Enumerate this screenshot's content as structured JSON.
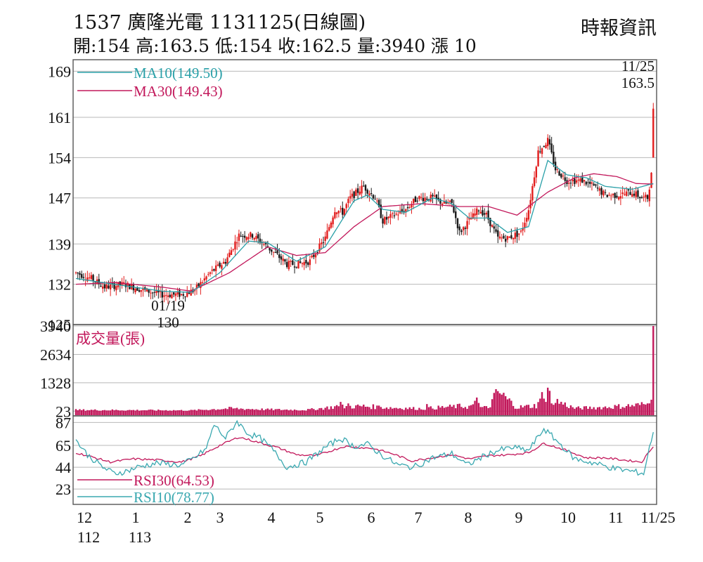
{
  "header": {
    "title": "1537  廣隆光電 1131125(日線圖)",
    "subtitle": "開:154 高:163.5 低:154 收:162.5 量:3940 漲 10",
    "source": "時報資訊"
  },
  "colors": {
    "up": "#e21d1d",
    "down": "#1a1a1a",
    "ma10": "#2aa0a8",
    "ma30": "#c2185b",
    "volume": "#c2185b",
    "rsi30": "#c2185b",
    "rsi10": "#3aa8b0",
    "grid": "#b8b8b8",
    "frame": "#555555"
  },
  "chart_data": {
    "type": "candlestick",
    "price_panel": {
      "y_ticks": [
        "169",
        "161",
        "154",
        "147",
        "139",
        "132",
        "125"
      ],
      "y_tick_values": [
        169,
        161,
        154,
        147,
        139,
        132,
        125
      ],
      "ylim": [
        125,
        171
      ],
      "legend": [
        {
          "label": "MA10(149.50)",
          "color": "#2aa0a8"
        },
        {
          "label": "MA30(149.43)",
          "color": "#c2185b"
        }
      ],
      "annotations": {
        "high_date": "11/25",
        "high_value": "163.5",
        "low_date": "01/19",
        "low_value": "130"
      },
      "last_candle": {
        "date": "11/25",
        "open": 154,
        "high": 163.5,
        "low": 154,
        "close": 162.5
      }
    },
    "volume_panel": {
      "title": "成交量(張)",
      "y_ticks": [
        "3940",
        "2634",
        "1328",
        "23"
      ],
      "y_tick_values": [
        3940,
        2634,
        1328,
        23
      ],
      "last_volume": 3940
    },
    "rsi_panel": {
      "y_ticks": [
        "87",
        "65",
        "44",
        "23"
      ],
      "y_tick_values": [
        87,
        65,
        44,
        23
      ],
      "legend": [
        {
          "label": "RSI30(64.53)",
          "color": "#c2185b"
        },
        {
          "label": "RSI10(78.77)",
          "color": "#3aa8b0"
        }
      ]
    },
    "x_axis": {
      "months": [
        "12",
        "1",
        "2",
        "3",
        "4",
        "5",
        "6",
        "7",
        "8",
        "9",
        "10",
        "11",
        "11/25"
      ],
      "year_labels": [
        {
          "under": "12",
          "text": "112"
        },
        {
          "under": "1",
          "text": "113"
        }
      ]
    },
    "price_keypoints": [
      [
        0,
        134
      ],
      [
        8,
        133
      ],
      [
        15,
        131.5
      ],
      [
        25,
        132
      ],
      [
        35,
        131
      ],
      [
        45,
        130.2
      ],
      [
        55,
        130.2
      ],
      [
        62,
        131
      ],
      [
        70,
        134
      ],
      [
        78,
        136
      ],
      [
        85,
        140.5
      ],
      [
        92,
        140.5
      ],
      [
        98,
        139
      ],
      [
        105,
        137
      ],
      [
        110,
        135.5
      ],
      [
        115,
        135.5
      ],
      [
        122,
        136
      ],
      [
        130,
        140
      ],
      [
        135,
        145
      ],
      [
        139,
        144.5
      ],
      [
        143,
        147
      ],
      [
        150,
        149
      ],
      [
        156,
        147
      ],
      [
        160,
        143
      ],
      [
        166,
        144
      ],
      [
        172,
        145
      ],
      [
        178,
        147
      ],
      [
        186,
        147
      ],
      [
        192,
        146
      ],
      [
        196,
        146
      ],
      [
        200,
        141
      ],
      [
        205,
        143
      ],
      [
        210,
        145
      ],
      [
        214,
        144
      ],
      [
        220,
        140
      ],
      [
        225,
        140
      ],
      [
        232,
        141
      ],
      [
        236,
        145
      ],
      [
        241,
        155
      ],
      [
        246,
        157
      ],
      [
        250,
        152
      ],
      [
        256,
        150
      ],
      [
        264,
        150
      ],
      [
        270,
        149
      ],
      [
        276,
        147.5
      ],
      [
        283,
        147.5
      ],
      [
        290,
        148
      ],
      [
        295,
        147
      ],
      [
        298,
        147
      ],
      [
        300,
        151
      ],
      [
        301,
        160
      ]
    ],
    "ma10_keypoints": [
      [
        0,
        133
      ],
      [
        20,
        132
      ],
      [
        45,
        130.8
      ],
      [
        60,
        130.6
      ],
      [
        75,
        134
      ],
      [
        90,
        139.5
      ],
      [
        100,
        139.2
      ],
      [
        115,
        136
      ],
      [
        130,
        138.5
      ],
      [
        145,
        146.5
      ],
      [
        152,
        147.5
      ],
      [
        160,
        145
      ],
      [
        172,
        144.5
      ],
      [
        186,
        147
      ],
      [
        196,
        146
      ],
      [
        205,
        143.5
      ],
      [
        215,
        143.5
      ],
      [
        225,
        141
      ],
      [
        236,
        142
      ],
      [
        246,
        153.5
      ],
      [
        256,
        151
      ],
      [
        266,
        150.5
      ],
      [
        276,
        149
      ],
      [
        290,
        148.5
      ],
      [
        301,
        149.5
      ]
    ],
    "ma30_keypoints": [
      [
        0,
        132
      ],
      [
        20,
        132.3
      ],
      [
        45,
        131.5
      ],
      [
        60,
        130.8
      ],
      [
        80,
        134
      ],
      [
        100,
        138.5
      ],
      [
        115,
        137
      ],
      [
        130,
        137.5
      ],
      [
        145,
        142
      ],
      [
        160,
        145.5
      ],
      [
        180,
        146
      ],
      [
        200,
        145.5
      ],
      [
        215,
        145.5
      ],
      [
        230,
        144
      ],
      [
        246,
        148
      ],
      [
        260,
        150.5
      ],
      [
        270,
        151.2
      ],
      [
        282,
        150.7
      ],
      [
        292,
        149.5
      ],
      [
        301,
        149.4
      ]
    ],
    "rsi30_keypoints": [
      [
        0,
        58
      ],
      [
        8,
        54
      ],
      [
        18,
        49
      ],
      [
        30,
        52
      ],
      [
        42,
        51
      ],
      [
        55,
        49
      ],
      [
        65,
        55
      ],
      [
        75,
        65
      ],
      [
        85,
        73
      ],
      [
        95,
        68
      ],
      [
        105,
        63
      ],
      [
        115,
        56
      ],
      [
        125,
        55
      ],
      [
        140,
        64
      ],
      [
        155,
        62
      ],
      [
        165,
        57
      ],
      [
        175,
        50
      ],
      [
        185,
        53
      ],
      [
        196,
        56
      ],
      [
        205,
        52
      ],
      [
        215,
        55
      ],
      [
        226,
        56
      ],
      [
        236,
        58
      ],
      [
        244,
        67
      ],
      [
        256,
        60
      ],
      [
        266,
        53
      ],
      [
        276,
        53
      ],
      [
        285,
        51
      ],
      [
        295,
        49
      ],
      [
        301,
        64.5
      ]
    ],
    "rsi10_keypoints": [
      [
        0,
        70
      ],
      [
        6,
        56
      ],
      [
        14,
        44
      ],
      [
        20,
        38
      ],
      [
        26,
        40
      ],
      [
        32,
        44
      ],
      [
        42,
        48
      ],
      [
        55,
        46
      ],
      [
        62,
        53
      ],
      [
        68,
        62
      ],
      [
        72,
        85
      ],
      [
        78,
        72
      ],
      [
        84,
        88
      ],
      [
        90,
        76
      ],
      [
        96,
        72
      ],
      [
        102,
        62
      ],
      [
        110,
        44
      ],
      [
        120,
        49
      ],
      [
        130,
        63
      ],
      [
        138,
        72
      ],
      [
        145,
        64
      ],
      [
        152,
        66
      ],
      [
        160,
        55
      ],
      [
        168,
        46
      ],
      [
        176,
        44
      ],
      [
        186,
        53
      ],
      [
        196,
        57
      ],
      [
        204,
        46
      ],
      [
        214,
        56
      ],
      [
        220,
        60
      ],
      [
        228,
        63
      ],
      [
        236,
        60
      ],
      [
        244,
        81
      ],
      [
        252,
        67
      ],
      [
        260,
        52
      ],
      [
        270,
        48
      ],
      [
        280,
        43
      ],
      [
        290,
        40
      ],
      [
        296,
        38
      ],
      [
        301,
        78.8
      ]
    ],
    "volume_keypoints": [
      [
        0,
        80
      ],
      [
        60,
        60
      ],
      [
        80,
        150
      ],
      [
        100,
        100
      ],
      [
        120,
        80
      ],
      [
        135,
        220
      ],
      [
        150,
        250
      ],
      [
        165,
        180
      ],
      [
        180,
        140
      ],
      [
        200,
        250
      ],
      [
        215,
        180
      ],
      [
        220,
        900
      ],
      [
        230,
        200
      ],
      [
        240,
        280
      ],
      [
        244,
        1000
      ],
      [
        250,
        500
      ],
      [
        260,
        160
      ],
      [
        275,
        200
      ],
      [
        290,
        280
      ],
      [
        299,
        350
      ]
    ],
    "volume_spikes": [
      [
        136,
        300
      ],
      [
        138,
        450
      ],
      [
        142,
        380
      ],
      [
        157,
        280
      ],
      [
        183,
        350
      ],
      [
        206,
        300
      ],
      [
        207,
        340
      ],
      [
        208,
        500
      ],
      [
        209,
        650
      ],
      [
        210,
        400
      ],
      [
        242,
        600
      ],
      [
        243,
        900
      ],
      [
        244,
        600
      ],
      [
        245,
        450
      ],
      [
        248,
        380
      ],
      [
        296,
        350
      ],
      [
        298,
        380
      ],
      [
        300,
        550
      ],
      [
        301,
        3940
      ]
    ]
  }
}
